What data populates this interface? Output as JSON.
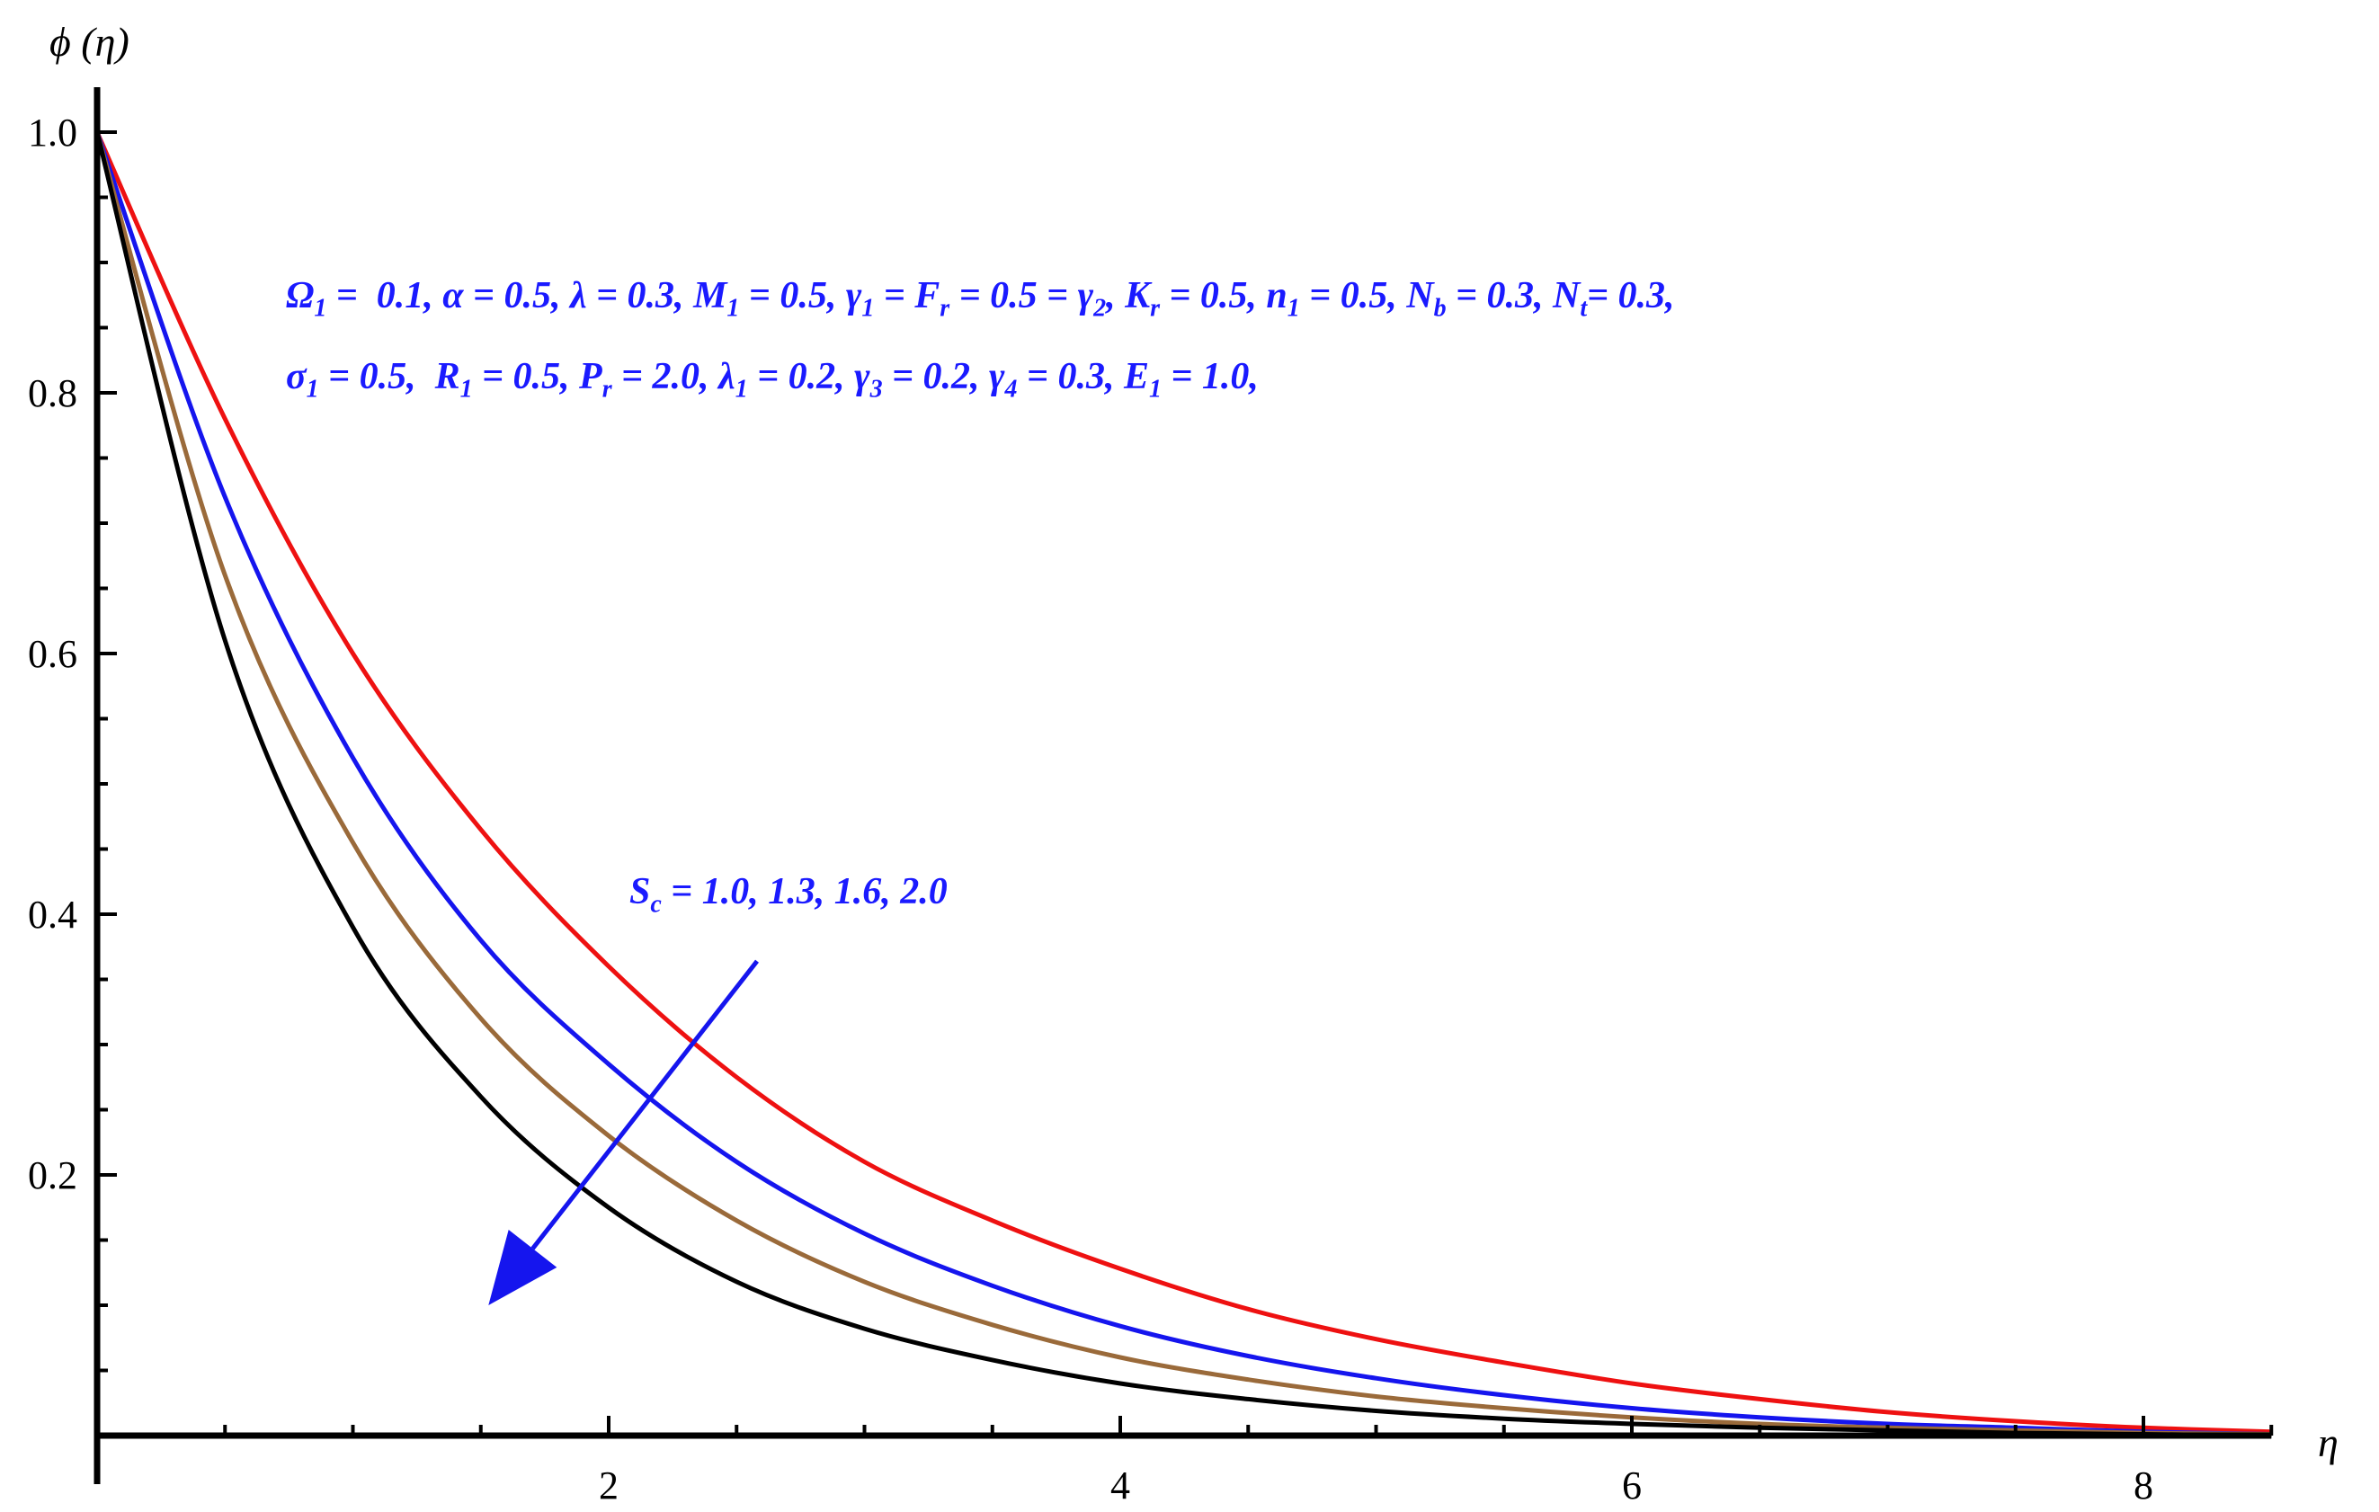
{
  "chart_data": {
    "type": "line",
    "xlabel": "η",
    "ylabel": "ϕ (η)",
    "xlim": [
      0,
      8.5
    ],
    "ylim": [
      0,
      1.0
    ],
    "xticks": [
      2,
      4,
      6,
      8
    ],
    "xtick_labels": [
      "2",
      "4",
      "6",
      "8"
    ],
    "yticks": [
      0.2,
      0.4,
      0.6,
      0.8,
      1.0
    ],
    "ytick_labels": [
      "0.2",
      "0.4",
      "0.6",
      "0.8",
      "1.0"
    ],
    "grid": false,
    "colors": {
      "curve1": "#ee1111",
      "curve2": "#1515ee",
      "curve3": "#9a6a3a",
      "curve4": "#000000",
      "arrow": "#1515ee",
      "annotation": "#1a1aff"
    },
    "series": [
      {
        "color": "#ee1111",
        "x": [
          0,
          0.5,
          1,
          1.5,
          2,
          2.5,
          3,
          3.5,
          4,
          4.5,
          5,
          5.5,
          6,
          6.5,
          7,
          7.5,
          8,
          8.5
        ],
        "y": [
          1.0,
          0.78,
          0.6,
          0.465,
          0.36,
          0.275,
          0.21,
          0.165,
          0.128,
          0.097,
          0.074,
          0.056,
          0.04,
          0.028,
          0.018,
          0.011,
          0.006,
          0.003
        ]
      },
      {
        "color": "#1515ee",
        "x": [
          0,
          0.5,
          1,
          1.5,
          2,
          2.5,
          3,
          3.5,
          4,
          4.5,
          5,
          5.5,
          6,
          6.5,
          7,
          7.5,
          8,
          8.5
        ],
        "y": [
          1.0,
          0.72,
          0.52,
          0.38,
          0.285,
          0.21,
          0.155,
          0.115,
          0.084,
          0.061,
          0.044,
          0.031,
          0.021,
          0.014,
          0.009,
          0.006,
          0.003,
          0.001
        ]
      },
      {
        "color": "#9a6a3a",
        "x": [
          0,
          0.5,
          1,
          1.5,
          2,
          2.5,
          3,
          3.5,
          4,
          4.5,
          5,
          5.5,
          6,
          6.5,
          7,
          7.5,
          8,
          8.5
        ],
        "y": [
          1.0,
          0.66,
          0.455,
          0.32,
          0.23,
          0.165,
          0.118,
          0.085,
          0.06,
          0.043,
          0.03,
          0.021,
          0.014,
          0.009,
          0.006,
          0.004,
          0.002,
          0.001
        ]
      },
      {
        "color": "#000000",
        "x": [
          0,
          0.5,
          1,
          1.5,
          2,
          2.5,
          3,
          3.5,
          4,
          4.5,
          5,
          5.5,
          6,
          6.5,
          7,
          7.5,
          8,
          8.5
        ],
        "y": [
          1.0,
          0.61,
          0.39,
          0.26,
          0.175,
          0.118,
          0.082,
          0.058,
          0.04,
          0.028,
          0.019,
          0.013,
          0.009,
          0.006,
          0.004,
          0.002,
          0.001,
          0.0
        ]
      }
    ],
    "arrow": {
      "from": [
        2.58,
        0.364
      ],
      "to": [
        1.53,
        0.1
      ]
    },
    "annotations": {
      "params_line1": [
        {
          "b": "Ω",
          "s": "1",
          "a": " =  0.1, "
        },
        {
          "b": "α",
          "s": "",
          "a": " = 0.5, "
        },
        {
          "b": "λ",
          "s": "",
          "a": " = 0.3, "
        },
        {
          "b": "M",
          "s": "1",
          "a": " = 0.5, "
        },
        {
          "b": "γ",
          "s": "1",
          "a": " = "
        },
        {
          "b": "F",
          "s": "r",
          "a": " = 0.5 = "
        },
        {
          "b": "γ",
          "s": "2",
          "a": ", "
        },
        {
          "b": "K",
          "s": "r",
          "a": " = 0.5, "
        },
        {
          "b": "n",
          "s": "1",
          "a": " = 0.5, "
        },
        {
          "b": "N",
          "s": "b",
          "a": " = 0.3, "
        },
        {
          "b": "N",
          "s": "t",
          "a": "= 0.3,"
        }
      ],
      "params_line2": [
        {
          "b": "σ",
          "s": "1",
          "a": " = 0.5,  "
        },
        {
          "b": "R",
          "s": "1",
          "a": " = 0.5, "
        },
        {
          "b": "P",
          "s": "r",
          "a": " = 2.0, "
        },
        {
          "b": "λ",
          "s": "1",
          "a": " = 0.2, "
        },
        {
          "b": "γ",
          "s": "3",
          "a": " = 0.2, "
        },
        {
          "b": "γ",
          "s": "4",
          "a": " = 0.3, "
        },
        {
          "b": "E",
          "s": "1",
          "a": " = 1.0,"
        }
      ],
      "sc_label": [
        {
          "b": "S",
          "s": "c",
          "a": " = 1.0, 1.3, 1.6, 2.0"
        }
      ]
    }
  }
}
